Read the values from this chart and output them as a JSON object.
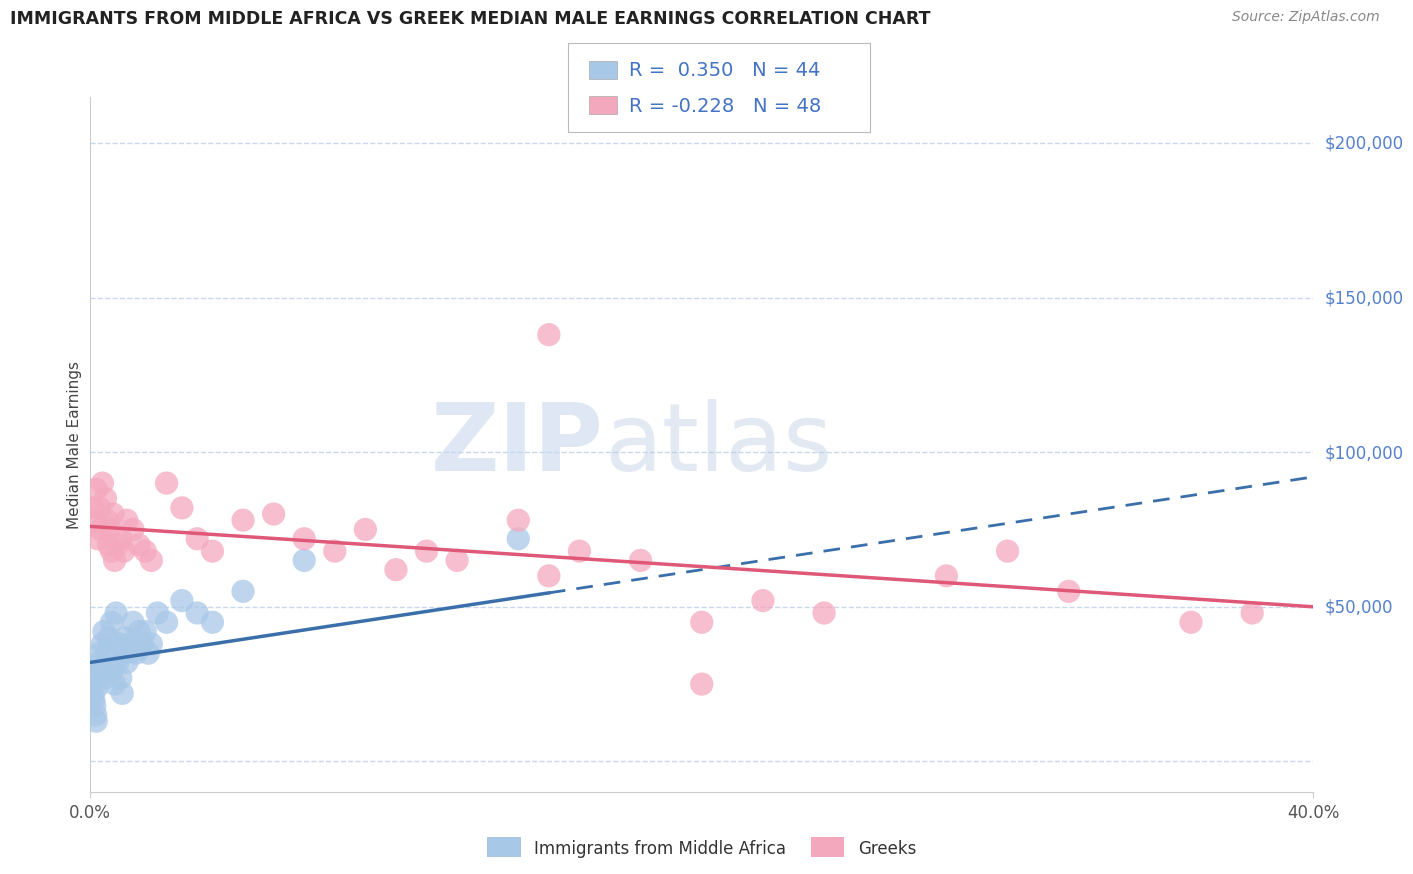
{
  "title": "IMMIGRANTS FROM MIDDLE AFRICA VS GREEK MEDIAN MALE EARNINGS CORRELATION CHART",
  "source": "Source: ZipAtlas.com",
  "ylabel": "Median Male Earnings",
  "y_ticks": [
    0,
    50000,
    100000,
    150000,
    200000
  ],
  "y_tick_labels": [
    "",
    "$50,000",
    "$100,000",
    "$150,000",
    "$200,000"
  ],
  "xlim": [
    0.0,
    40.0
  ],
  "ylim": [
    -10000,
    215000
  ],
  "blue_R": "0.350",
  "blue_N": "44",
  "pink_R": "-0.228",
  "pink_N": "48",
  "blue_color": "#a8c8e8",
  "blue_edge": "none",
  "pink_color": "#f4a8be",
  "pink_edge": "none",
  "blue_line_color": "#3a6faa",
  "pink_line_color": "#e05878",
  "legend_label_blue": "Immigrants from Middle Africa",
  "legend_label_pink": "Greeks",
  "watermark_zip": "ZIP",
  "watermark_atlas": "atlas",
  "background_color": "#ffffff",
  "grid_color": "#c8d8ec",
  "title_color": "#222222",
  "source_color": "#888888",
  "right_label_color": "#5580cc",
  "blue_solid_end": 15.0,
  "blue_trend_intercept": 32000,
  "blue_trend_slope": 1500,
  "pink_trend_intercept": 76000,
  "pink_trend_slope": -650,
  "blue_x": [
    0.08,
    0.1,
    0.12,
    0.15,
    0.18,
    0.2,
    0.22,
    0.25,
    0.28,
    0.3,
    0.35,
    0.4,
    0.45,
    0.5,
    0.55,
    0.6,
    0.65,
    0.7,
    0.75,
    0.8,
    0.85,
    0.9,
    0.95,
    1.0,
    1.05,
    1.1,
    1.15,
    1.2,
    1.3,
    1.4,
    1.5,
    1.6,
    1.7,
    1.8,
    1.9,
    2.0,
    2.2,
    2.5,
    3.0,
    3.5,
    4.0,
    5.0,
    7.0,
    14.0
  ],
  "blue_y": [
    25000,
    22000,
    20000,
    18000,
    15000,
    13000,
    24000,
    28000,
    32000,
    35000,
    30000,
    38000,
    42000,
    27000,
    35000,
    40000,
    28000,
    45000,
    30000,
    25000,
    48000,
    32000,
    38000,
    27000,
    22000,
    35000,
    40000,
    32000,
    38000,
    45000,
    35000,
    42000,
    38000,
    42000,
    35000,
    38000,
    48000,
    45000,
    52000,
    48000,
    45000,
    55000,
    65000,
    72000
  ],
  "pink_x": [
    0.1,
    0.15,
    0.2,
    0.25,
    0.3,
    0.35,
    0.4,
    0.5,
    0.55,
    0.6,
    0.65,
    0.7,
    0.75,
    0.8,
    0.9,
    1.0,
    1.1,
    1.2,
    1.4,
    1.6,
    1.8,
    2.0,
    2.5,
    3.0,
    3.5,
    4.0,
    5.0,
    6.0,
    7.0,
    8.0,
    9.0,
    10.0,
    11.0,
    12.0,
    14.0,
    15.0,
    16.0,
    18.0,
    20.0,
    22.0,
    24.0,
    28.0,
    30.0,
    32.0,
    36.0,
    38.0,
    20.0,
    15.0
  ],
  "pink_y": [
    82000,
    78000,
    88000,
    72000,
    82000,
    75000,
    90000,
    85000,
    78000,
    70000,
    75000,
    68000,
    80000,
    65000,
    70000,
    72000,
    68000,
    78000,
    75000,
    70000,
    68000,
    65000,
    90000,
    82000,
    72000,
    68000,
    78000,
    80000,
    72000,
    68000,
    75000,
    62000,
    68000,
    65000,
    78000,
    60000,
    68000,
    65000,
    45000,
    52000,
    48000,
    60000,
    68000,
    55000,
    45000,
    48000,
    25000,
    138000
  ]
}
